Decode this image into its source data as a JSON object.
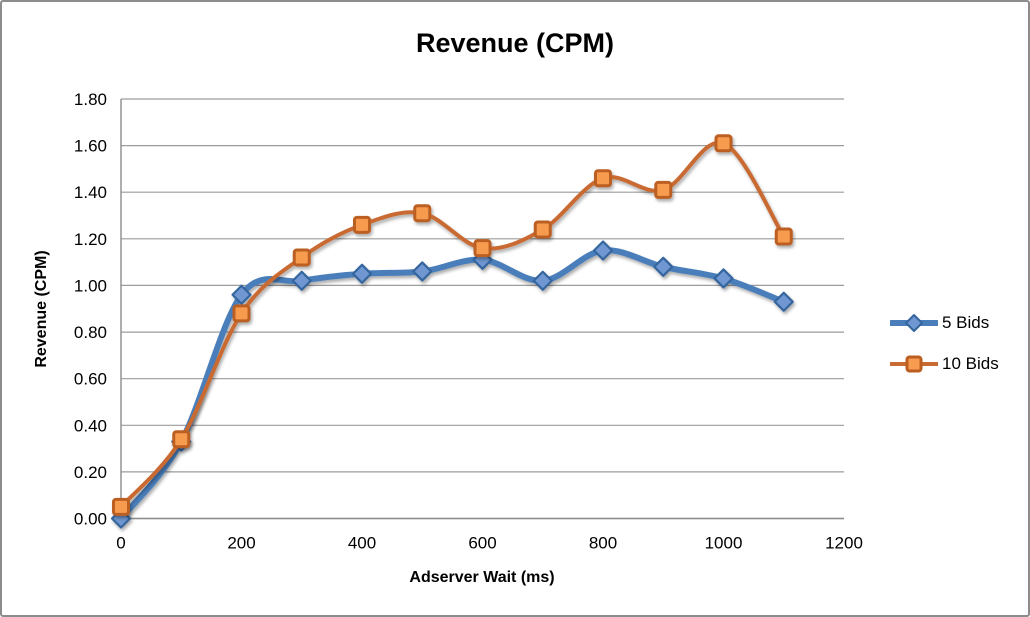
{
  "chart_data": {
    "type": "line",
    "title": "Revenue (CPM)",
    "xlabel": "Adserver Wait (ms)",
    "ylabel": "Revenue (CPM)",
    "x": [
      0,
      100,
      200,
      300,
      400,
      500,
      600,
      700,
      800,
      900,
      1000,
      1100
    ],
    "series": [
      {
        "name": "5 Bids",
        "marker": "diamond",
        "line_color": "#4A7EBB",
        "marker_fill": "#6F97D2",
        "marker_stroke": "#36659E",
        "line_width": 6,
        "values": [
          0.0,
          0.33,
          0.96,
          1.02,
          1.05,
          1.06,
          1.11,
          1.02,
          1.15,
          1.08,
          1.03,
          0.93
        ]
      },
      {
        "name": "10 Bids",
        "marker": "square",
        "line_color": "#C96A32",
        "marker_fill": "#F79C50",
        "marker_stroke": "#BC5E22",
        "line_width": 4,
        "values": [
          0.05,
          0.34,
          0.88,
          1.12,
          1.26,
          1.31,
          1.16,
          1.24,
          1.46,
          1.41,
          1.61,
          1.21
        ]
      }
    ],
    "xlim": [
      0,
      1200
    ],
    "ylim": [
      0,
      1.8
    ],
    "x_ticks": [
      0,
      200,
      400,
      600,
      800,
      1000,
      1200
    ],
    "x_tick_labels": [
      "0",
      "200",
      "400",
      "600",
      "800",
      "1000",
      "1200"
    ],
    "y_ticks": [
      0.0,
      0.2,
      0.4,
      0.6,
      0.8,
      1.0,
      1.2,
      1.4,
      1.6,
      1.8
    ],
    "y_tick_labels": [
      "0.00",
      "0.20",
      "0.40",
      "0.60",
      "0.80",
      "1.00",
      "1.20",
      "1.40",
      "1.60",
      "1.80"
    ],
    "grid": true,
    "smoothed_lines": true,
    "legend_position": "right"
  },
  "colors": {
    "grid": "#9C9C9C",
    "axis": "#8C8C8C",
    "frame_border": "#8C8C8C",
    "text": "#000000",
    "background": "#FFFFFF"
  }
}
